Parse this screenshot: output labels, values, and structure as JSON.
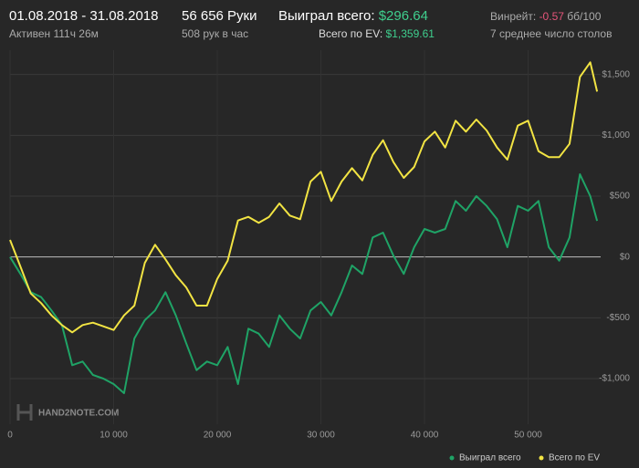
{
  "header": {
    "period": "01.08.2018 - 31.08.2018",
    "active": "Активен 111ч 26м",
    "hands": "56 656 Руки",
    "hands_per_hour": "508 рук в час",
    "won_label": "Выиграл всего:",
    "won_value": "$296.64",
    "ev_label": "Всего по EV:",
    "ev_value": "$1,359.61",
    "winrate_label": "Винрейт:",
    "winrate_value": "-0.57",
    "winrate_unit": "бб/100",
    "tables": "7 среднее число столов"
  },
  "watermark": "HAND2NOTE.COM",
  "chart_data": {
    "type": "line",
    "x": [
      0,
      1000,
      2000,
      3000,
      4000,
      5000,
      6000,
      7000,
      8000,
      9000,
      10000,
      11000,
      12000,
      13000,
      14000,
      15000,
      16000,
      17000,
      18000,
      19000,
      20000,
      21000,
      22000,
      23000,
      24000,
      25000,
      26000,
      27000,
      28000,
      29000,
      30000,
      31000,
      32000,
      33000,
      34000,
      35000,
      36000,
      37000,
      38000,
      39000,
      40000,
      41000,
      42000,
      43000,
      44000,
      45000,
      46000,
      47000,
      48000,
      49000,
      50000,
      51000,
      52000,
      53000,
      54000,
      55000,
      56000,
      56656
    ],
    "series": [
      {
        "name": "Выиграл всего",
        "color": "#1fa366",
        "values": [
          0,
          -140,
          -290,
          -330,
          -440,
          -560,
          -890,
          -860,
          -970,
          -1000,
          -1045,
          -1120,
          -670,
          -520,
          -440,
          -290,
          -480,
          -710,
          -930,
          -860,
          -890,
          -740,
          -1045,
          -590,
          -630,
          -740,
          -480,
          -590,
          -670,
          -440,
          -370,
          -480,
          -290,
          -70,
          -140,
          160,
          200,
          10,
          -140,
          80,
          230,
          200,
          230,
          460,
          380,
          500,
          420,
          310,
          80,
          420,
          380,
          460,
          80,
          -30,
          160,
          680,
          500,
          296.64
        ]
      },
      {
        "name": "Всего по EV",
        "color": "#f2e443",
        "values": [
          140,
          -80,
          -300,
          -380,
          -480,
          -560,
          -620,
          -560,
          -540,
          -570,
          -600,
          -480,
          -400,
          -50,
          100,
          -20,
          -150,
          -250,
          -400,
          -400,
          -180,
          -30,
          300,
          330,
          280,
          330,
          440,
          340,
          310,
          620,
          700,
          460,
          620,
          730,
          630,
          840,
          960,
          780,
          650,
          740,
          950,
          1030,
          900,
          1120,
          1030,
          1130,
          1040,
          900,
          800,
          1080,
          1120,
          870,
          820,
          820,
          930,
          1480,
          1600,
          1359.61
        ]
      }
    ],
    "xlim": [
      0,
      57000
    ],
    "ylim": [
      -1300,
      1700
    ],
    "xticks": [
      {
        "value": 0,
        "label": "0"
      },
      {
        "value": 10000,
        "label": "10 000"
      },
      {
        "value": 20000,
        "label": "20 000"
      },
      {
        "value": 30000,
        "label": "30 000"
      },
      {
        "value": 40000,
        "label": "40 000"
      },
      {
        "value": 50000,
        "label": "50 000"
      }
    ],
    "yticks": [
      {
        "value": -1000,
        "label": "-$1,000"
      },
      {
        "value": -500,
        "label": "-$500"
      },
      {
        "value": 0,
        "label": "$0"
      },
      {
        "value": 500,
        "label": "$500"
      },
      {
        "value": 1000,
        "label": "$1,000"
      },
      {
        "value": 1500,
        "label": "$1,500"
      }
    ],
    "grid": true,
    "legend": "bottom-right"
  }
}
